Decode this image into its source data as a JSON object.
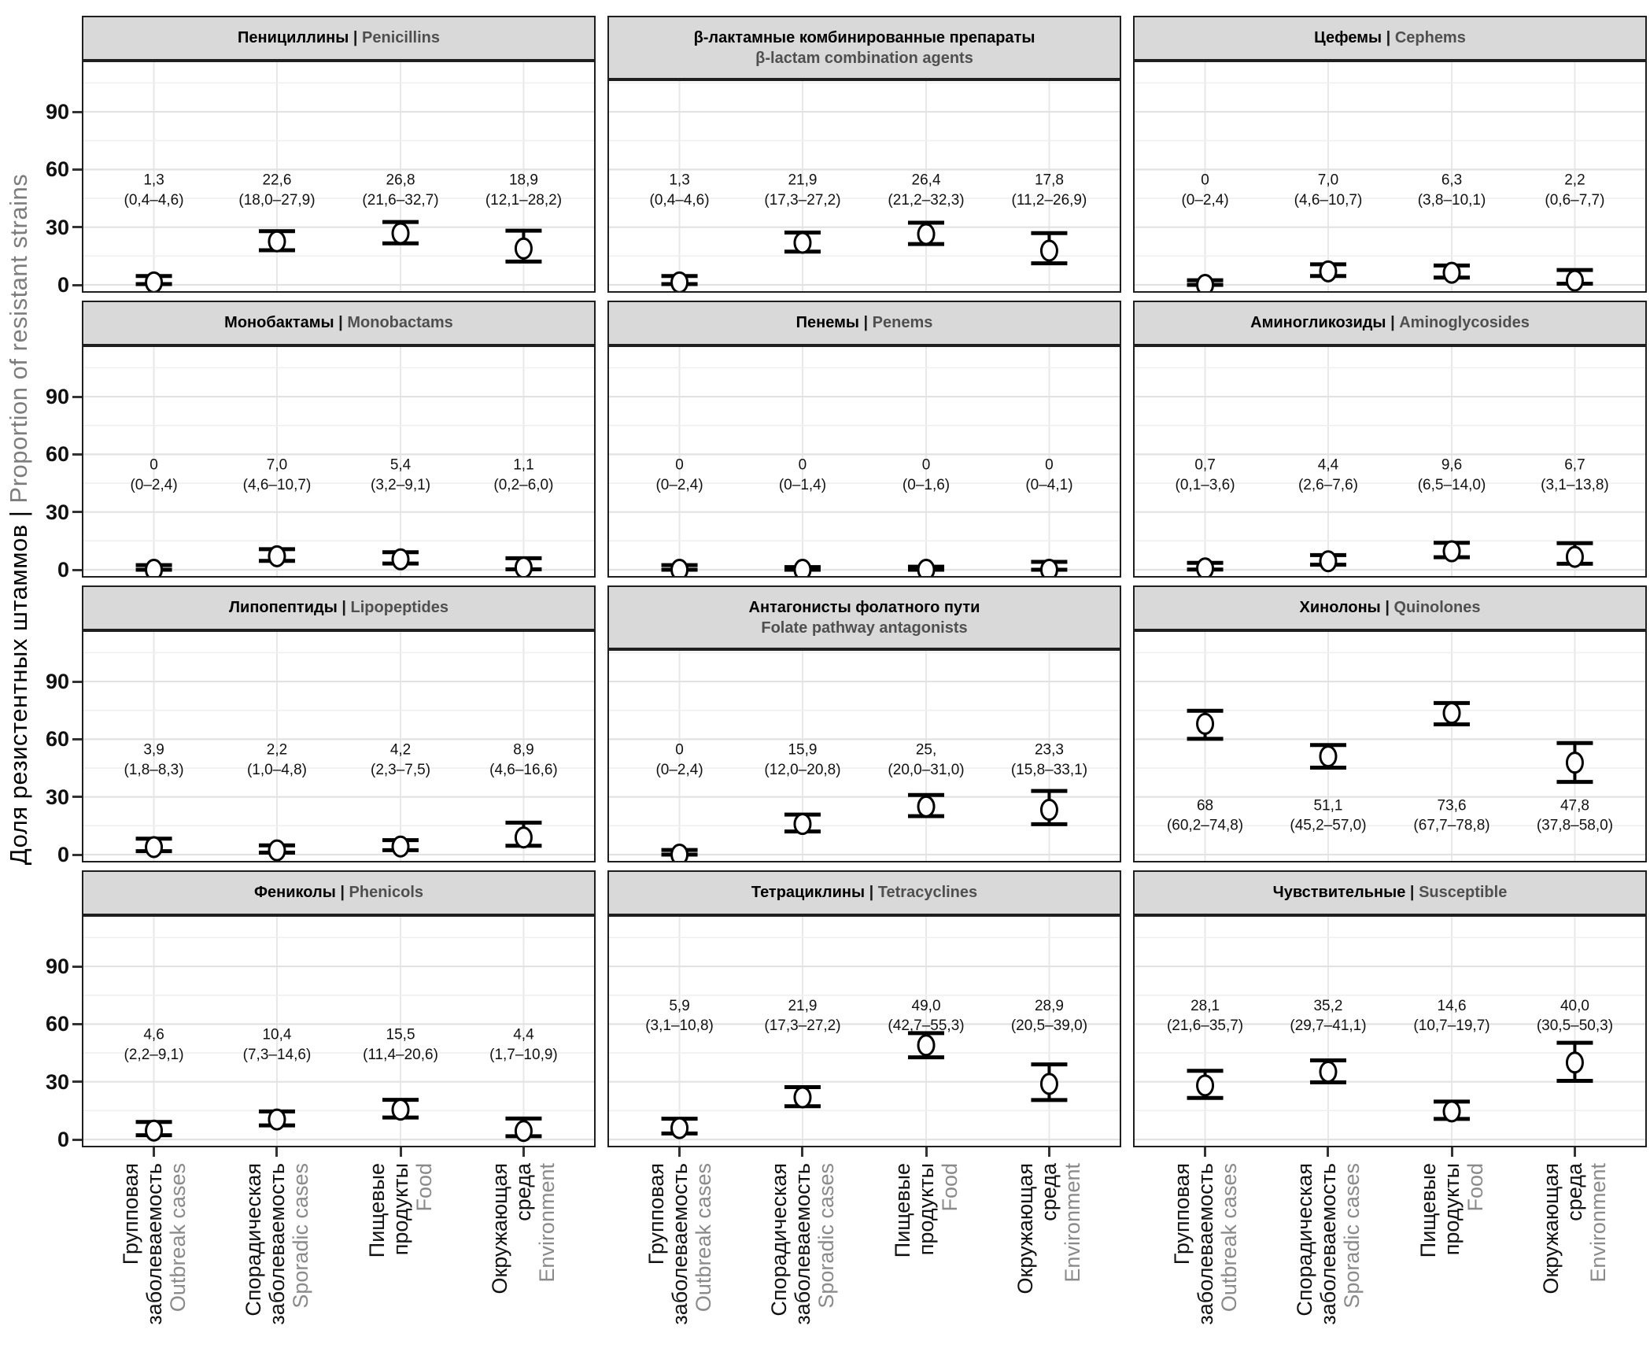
{
  "chart_data": {
    "type": "scatter",
    "subtype": "faceted-point-with-ci-errorbars",
    "separator": " | ",
    "grid": {
      "major_y": [
        0,
        30,
        60,
        90
      ],
      "minor_y": [
        15,
        45,
        75,
        105
      ],
      "vertical_at_categories": true
    },
    "ylim": [
      -4,
      117
    ],
    "colors": {
      "strip_bg": "#d9d9d9",
      "panel_border": "#1f1f1f",
      "strip_text_ru": "#000000",
      "strip_text_en": "#4f4f4f",
      "axis_en_text": "#7d7d7d",
      "xcat_en_text": "#8a8a8a",
      "grid_major": "#e2e2e2",
      "grid_minor": "#efefef",
      "point_fill": "#ffffff",
      "point_stroke": "#000000",
      "errorbar": "#000000"
    },
    "y_axis": {
      "label_ru": "Доля резистентных штаммов",
      "label_en": "Proportion of resistant strains",
      "ticks": [
        "0",
        "30",
        "60",
        "90"
      ]
    },
    "x_axis": {
      "categories": [
        {
          "ru_lines": [
            "Групповая",
            "заболеваемость"
          ],
          "en": "Outbreak cases"
        },
        {
          "ru_lines": [
            "Спорадическая",
            "заболеваемость"
          ],
          "en": "Sporadic cases"
        },
        {
          "ru_lines": [
            "Пищевые",
            "продукты"
          ],
          "en": "Food"
        },
        {
          "ru_lines": [
            "Окружающая",
            "среда"
          ],
          "en": "Environment"
        }
      ]
    },
    "panels": [
      {
        "slug": "penicillins",
        "title_ru": "Пенициллины",
        "title_en": "Penicillins",
        "strip_lines": 1,
        "label_y": 55,
        "points": [
          {
            "value": 1.3,
            "lo": 0.4,
            "hi": 4.6,
            "value_label": "1,3",
            "ci_label": "(0,4–4,6)"
          },
          {
            "value": 22.6,
            "lo": 18.0,
            "hi": 27.9,
            "value_label": "22,6",
            "ci_label": "(18,0–27,9)"
          },
          {
            "value": 26.8,
            "lo": 21.6,
            "hi": 32.7,
            "value_label": "26,8",
            "ci_label": "(21,6–32,7)"
          },
          {
            "value": 18.9,
            "lo": 12.1,
            "hi": 28.2,
            "value_label": "18,9",
            "ci_label": "(12,1–28,2)"
          }
        ]
      },
      {
        "slug": "beta-lactam-combination-agents",
        "title_ru": "β-лактамные комбинированные препараты",
        "title_en": "β-lactam combination agents",
        "strip_lines": 2,
        "label_y": 55,
        "points": [
          {
            "value": 1.3,
            "lo": 0.4,
            "hi": 4.6,
            "value_label": "1,3",
            "ci_label": "(0,4–4,6)"
          },
          {
            "value": 21.9,
            "lo": 17.3,
            "hi": 27.2,
            "value_label": "21,9",
            "ci_label": "(17,3–27,2)"
          },
          {
            "value": 26.4,
            "lo": 21.2,
            "hi": 32.3,
            "value_label": "26,4",
            "ci_label": "(21,2–32,3)"
          },
          {
            "value": 17.8,
            "lo": 11.2,
            "hi": 26.9,
            "value_label": "17,8",
            "ci_label": "(11,2–26,9)"
          }
        ]
      },
      {
        "slug": "cephems",
        "title_ru": "Цефемы",
        "title_en": "Cephems",
        "strip_lines": 1,
        "label_y": 55,
        "points": [
          {
            "value": 0,
            "lo": 0,
            "hi": 2.4,
            "value_label": "0",
            "ci_label": "(0–2,4)"
          },
          {
            "value": 7.0,
            "lo": 4.6,
            "hi": 10.7,
            "value_label": "7,0",
            "ci_label": "(4,6–10,7)"
          },
          {
            "value": 6.3,
            "lo": 3.8,
            "hi": 10.1,
            "value_label": "6,3",
            "ci_label": "(3,8–10,1)"
          },
          {
            "value": 2.2,
            "lo": 0.6,
            "hi": 7.7,
            "value_label": "2,2",
            "ci_label": "(0,6–7,7)"
          }
        ]
      },
      {
        "slug": "monobactams",
        "title_ru": "Монобактамы",
        "title_en": "Monobactams",
        "strip_lines": 1,
        "label_y": 55,
        "points": [
          {
            "value": 0,
            "lo": 0,
            "hi": 2.4,
            "value_label": "0",
            "ci_label": "(0–2,4)"
          },
          {
            "value": 7.0,
            "lo": 4.6,
            "hi": 10.7,
            "value_label": "7,0",
            "ci_label": "(4,6–10,7)"
          },
          {
            "value": 5.4,
            "lo": 3.2,
            "hi": 9.1,
            "value_label": "5,4",
            "ci_label": "(3,2–9,1)"
          },
          {
            "value": 1.1,
            "lo": 0.2,
            "hi": 6.0,
            "value_label": "1,1",
            "ci_label": "(0,2–6,0)"
          }
        ]
      },
      {
        "slug": "penems",
        "title_ru": "Пенемы",
        "title_en": "Penems",
        "strip_lines": 1,
        "label_y": 55,
        "points": [
          {
            "value": 0,
            "lo": 0,
            "hi": 2.4,
            "value_label": "0",
            "ci_label": "(0–2,4)"
          },
          {
            "value": 0,
            "lo": 0,
            "hi": 1.4,
            "value_label": "0",
            "ci_label": "(0–1,4)"
          },
          {
            "value": 0,
            "lo": 0,
            "hi": 1.6,
            "value_label": "0",
            "ci_label": "(0–1,6)"
          },
          {
            "value": 0,
            "lo": 0,
            "hi": 4.1,
            "value_label": "0",
            "ci_label": "(0–4,1)"
          }
        ]
      },
      {
        "slug": "aminoglycosides",
        "title_ru": "Аминогликозиды",
        "title_en": "Aminoglycosides",
        "strip_lines": 1,
        "label_y": 55,
        "points": [
          {
            "value": 0.7,
            "lo": 0.1,
            "hi": 3.6,
            "value_label": "0,7",
            "ci_label": "(0,1–3,6)"
          },
          {
            "value": 4.4,
            "lo": 2.6,
            "hi": 7.6,
            "value_label": "4,4",
            "ci_label": "(2,6–7,6)"
          },
          {
            "value": 9.6,
            "lo": 6.5,
            "hi": 14.0,
            "value_label": "9,6",
            "ci_label": "(6,5–14,0)"
          },
          {
            "value": 6.7,
            "lo": 3.1,
            "hi": 13.8,
            "value_label": "6,7",
            "ci_label": "(3,1–13,8)"
          }
        ]
      },
      {
        "slug": "lipopeptides",
        "title_ru": "Липопептиды",
        "title_en": "Lipopeptides",
        "strip_lines": 1,
        "label_y": 55,
        "points": [
          {
            "value": 3.9,
            "lo": 1.8,
            "hi": 8.3,
            "value_label": "3,9",
            "ci_label": "(1,8–8,3)"
          },
          {
            "value": 2.2,
            "lo": 1.0,
            "hi": 4.8,
            "value_label": "2,2",
            "ci_label": "(1,0–4,8)"
          },
          {
            "value": 4.2,
            "lo": 2.3,
            "hi": 7.5,
            "value_label": "4,2",
            "ci_label": "(2,3–7,5)"
          },
          {
            "value": 8.9,
            "lo": 4.6,
            "hi": 16.6,
            "value_label": "8,9",
            "ci_label": "(4,6–16,6)"
          }
        ]
      },
      {
        "slug": "folate-pathway-antagonists",
        "title_ru": "Антагонисты фолатного пути",
        "title_en": "Folate pathway antagonists",
        "strip_lines": 2,
        "label_y": 55,
        "points": [
          {
            "value": 0,
            "lo": 0,
            "hi": 2.4,
            "value_label": "0",
            "ci_label": "(0–2,4)"
          },
          {
            "value": 15.9,
            "lo": 12.0,
            "hi": 20.8,
            "value_label": "15,9",
            "ci_label": "(12,0–20,8)"
          },
          {
            "value": 25,
            "lo": 20.0,
            "hi": 31.0,
            "value_label": "25,",
            "ci_label": "(20,0–31,0)"
          },
          {
            "value": 23.3,
            "lo": 15.8,
            "hi": 33.1,
            "value_label": "23,3",
            "ci_label": "(15,8–33,1)"
          }
        ]
      },
      {
        "slug": "quinolones",
        "title_ru": "Хинолоны",
        "title_en": "Quinolones",
        "strip_lines": 1,
        "label_y": 26,
        "points": [
          {
            "value": 68,
            "lo": 60.2,
            "hi": 74.8,
            "value_label": "68",
            "ci_label": "(60,2–74,8)"
          },
          {
            "value": 51.1,
            "lo": 45.2,
            "hi": 57.0,
            "value_label": "51,1",
            "ci_label": "(45,2–57,0)"
          },
          {
            "value": 73.6,
            "lo": 67.7,
            "hi": 78.8,
            "value_label": "73,6",
            "ci_label": "(67,7–78,8)"
          },
          {
            "value": 47.8,
            "lo": 37.8,
            "hi": 58.0,
            "value_label": "47,8",
            "ci_label": "(37,8–58,0)"
          }
        ]
      },
      {
        "slug": "phenicols",
        "title_ru": "Фениколы",
        "title_en": "Phenicols",
        "strip_lines": 1,
        "label_y": 55,
        "points": [
          {
            "value": 4.6,
            "lo": 2.2,
            "hi": 9.1,
            "value_label": "4,6",
            "ci_label": "(2,2–9,1)"
          },
          {
            "value": 10.4,
            "lo": 7.3,
            "hi": 14.6,
            "value_label": "10,4",
            "ci_label": "(7,3–14,6)"
          },
          {
            "value": 15.5,
            "lo": 11.4,
            "hi": 20.6,
            "value_label": "15,5",
            "ci_label": "(11,4–20,6)"
          },
          {
            "value": 4.4,
            "lo": 1.7,
            "hi": 10.9,
            "value_label": "4,4",
            "ci_label": "(1,7–10,9)"
          }
        ]
      },
      {
        "slug": "tetracyclines",
        "title_ru": "Тетрациклины",
        "title_en": "Tetracyclines",
        "strip_lines": 1,
        "label_y": 70,
        "points": [
          {
            "value": 5.9,
            "lo": 3.1,
            "hi": 10.8,
            "value_label": "5,9",
            "ci_label": "(3,1–10,8)"
          },
          {
            "value": 21.9,
            "lo": 17.3,
            "hi": 27.2,
            "value_label": "21,9",
            "ci_label": "(17,3–27,2)"
          },
          {
            "value": 49.0,
            "lo": 42.7,
            "hi": 55.3,
            "value_label": "49,0",
            "ci_label": "(42,7–55,3)"
          },
          {
            "value": 28.9,
            "lo": 20.5,
            "hi": 39.0,
            "value_label": "28,9",
            "ci_label": "(20,5–39,0)"
          }
        ]
      },
      {
        "slug": "susceptible",
        "title_ru": "Чувствительные",
        "title_en": "Susceptible",
        "strip_lines": 1,
        "label_y": 70,
        "points": [
          {
            "value": 28.1,
            "lo": 21.6,
            "hi": 35.7,
            "value_label": "28,1",
            "ci_label": "(21,6–35,7)"
          },
          {
            "value": 35.2,
            "lo": 29.7,
            "hi": 41.1,
            "value_label": "35,2",
            "ci_label": "(29,7–41,1)"
          },
          {
            "value": 14.6,
            "lo": 10.7,
            "hi": 19.7,
            "value_label": "14,6",
            "ci_label": "(10,7–19,7)"
          },
          {
            "value": 40.0,
            "lo": 30.5,
            "hi": 50.3,
            "value_label": "40,0",
            "ci_label": "(30,5–50,3)"
          }
        ]
      }
    ]
  }
}
